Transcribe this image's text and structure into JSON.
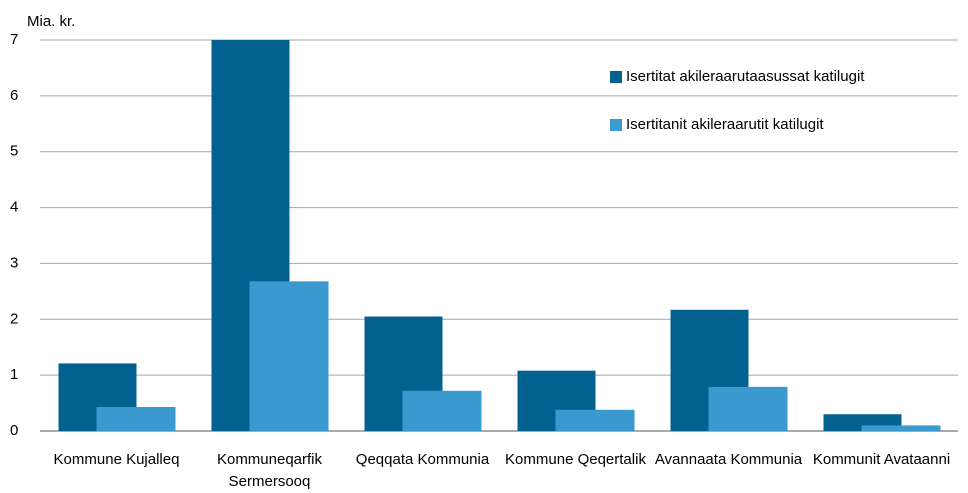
{
  "chart_data": {
    "type": "bar",
    "ylabel": "Mia. kr.",
    "categories": [
      "Kommune Kujalleq",
      "Kommuneqarfik Sermersooq",
      "Qeqqata Kommunia",
      "Kommune Qeqertalik",
      "Avannaata Kommunia",
      "Kommunit Avataanni"
    ],
    "series": [
      {
        "name": "Isertitat akileraarutaasussat katilugit",
        "color": "#03618f",
        "values": [
          1.21,
          7.0,
          2.05,
          1.08,
          2.17,
          0.3
        ]
      },
      {
        "name": "Isertitanit akileraarutit katilugit",
        "color": "#3a9ad0",
        "values": [
          0.43,
          2.68,
          0.72,
          0.38,
          0.79,
          0.1
        ]
      }
    ],
    "ylim": [
      0,
      7
    ],
    "yticks": [
      0,
      1,
      2,
      3,
      4,
      5,
      6,
      7
    ],
    "grid": true,
    "legend": "upper right"
  }
}
